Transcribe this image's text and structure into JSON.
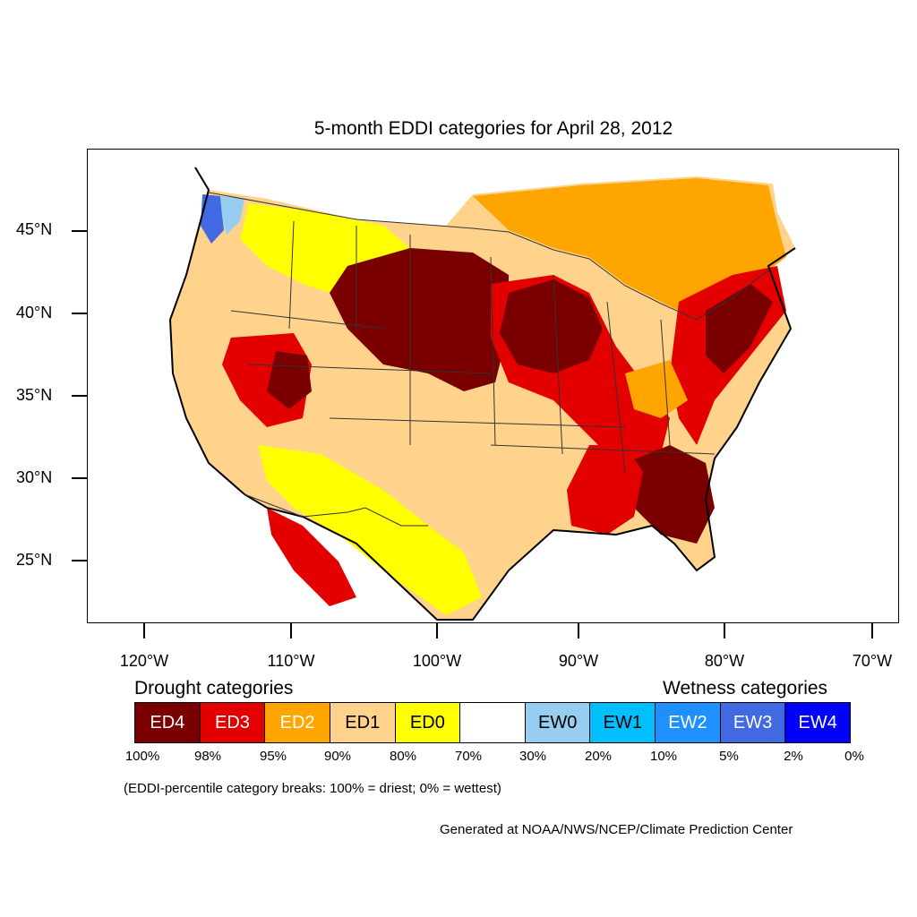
{
  "title": "5-month EDDI categories for April 28, 2012",
  "map": {
    "lat_labels": [
      "45°N",
      "40°N",
      "35°N",
      "30°N",
      "25°N"
    ],
    "lon_labels": [
      "120°W",
      "110°W",
      "100°W",
      "90°W",
      "80°W",
      "70°W"
    ],
    "colors": {
      "ED4": "#7a0000",
      "ED3": "#e30000",
      "ED2": "#ffa500",
      "ED1": "#ffd38c",
      "ED0": "#ffff00",
      "EW0": "#96cdf0",
      "EW1": "#00bfff",
      "EW2": "#1e90ff",
      "EW3": "#4169e1",
      "coast": "#000000",
      "border": "#333333"
    }
  },
  "legend": {
    "drought_heading": "Drought categories",
    "wetness_heading": "Wetness categories",
    "cells": [
      {
        "label": "ED4",
        "color": "#7a0000",
        "text_color": "#ffffff"
      },
      {
        "label": "ED3",
        "color": "#e30000",
        "text_color": "#ffffff"
      },
      {
        "label": "ED2",
        "color": "#ffa500",
        "text_color": "#ffffff"
      },
      {
        "label": "ED1",
        "color": "#ffd38c",
        "text_color": "#000000"
      },
      {
        "label": "ED0",
        "color": "#ffff00",
        "text_color": "#000000"
      },
      {
        "label": "",
        "color": "#ffffff",
        "text_color": "#000000"
      },
      {
        "label": "EW0",
        "color": "#96cdf0",
        "text_color": "#000000"
      },
      {
        "label": "EW1",
        "color": "#00bfff",
        "text_color": "#000000"
      },
      {
        "label": "EW2",
        "color": "#1e90ff",
        "text_color": "#ffffff"
      },
      {
        "label": "EW3",
        "color": "#4169e1",
        "text_color": "#ffffff"
      },
      {
        "label": "EW4",
        "color": "#0000ff",
        "text_color": "#ffffff"
      }
    ],
    "breaks": [
      "100%",
      "98%",
      "95%",
      "90%",
      "80%",
      "70%",
      "30%",
      "20%",
      "10%",
      "5%",
      "2%",
      "0%"
    ]
  },
  "note": "(EDDI-percentile category breaks: 100% = driest; 0% = wettest)",
  "credit": "Generated at NOAA/NWS/NCEP/Climate Prediction Center"
}
